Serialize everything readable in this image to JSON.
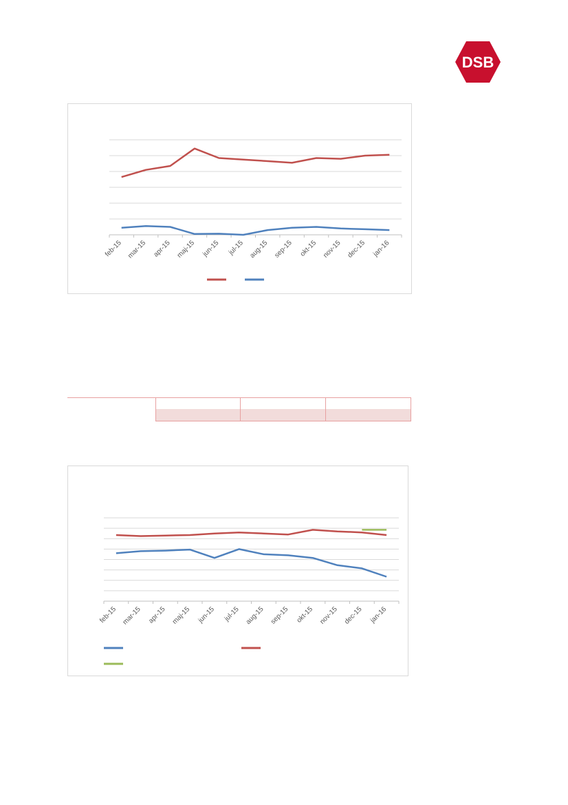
{
  "logo": {
    "text": "DSB",
    "color": "#c8102e"
  },
  "colors": {
    "red": "#c0504d",
    "blue": "#4f81bd",
    "green": "#9bbb59",
    "grid": "#d9d9d9",
    "table_border": "#e8a0a0",
    "table_fill": "#f2dcdb"
  },
  "table": {
    "label": "",
    "headers": [
      "",
      "",
      ""
    ],
    "values": [
      "",
      "",
      ""
    ]
  },
  "chart_data": [
    {
      "type": "line",
      "title": "",
      "categories": [
        "feb-15",
        "mar-15",
        "apr-15",
        "maj-15",
        "jun-15",
        "jul-15",
        "aug-15",
        "sep-15",
        "okt-15",
        "nov-15",
        "dec-15",
        "jan-16"
      ],
      "ylim": [
        0,
        6
      ],
      "grid": true,
      "legend": "bottom",
      "series": [
        {
          "color": "#c0504d",
          "values": [
            3.65,
            4.1,
            4.35,
            5.45,
            4.85,
            4.75,
            4.65,
            4.55,
            4.85,
            4.8,
            5.0,
            5.05
          ]
        },
        {
          "color": "#4f81bd",
          "values": [
            0.45,
            0.55,
            0.5,
            0.05,
            0.07,
            0.0,
            0.3,
            0.45,
            0.5,
            0.4,
            0.35,
            0.3
          ]
        }
      ]
    },
    {
      "type": "line",
      "title": "",
      "categories": [
        "feb-15",
        "mar-15",
        "apr-15",
        "maj-15",
        "jun-15",
        "jul-15",
        "aug-15",
        "sep-15",
        "okt-15",
        "nov-15",
        "dec-15",
        "jan-16"
      ],
      "ylim": [
        0,
        8
      ],
      "grid": true,
      "legend": "bottom",
      "series": [
        {
          "color": "#4f81bd",
          "values": [
            4.6,
            4.8,
            4.85,
            4.95,
            4.15,
            5.0,
            4.5,
            4.4,
            4.15,
            3.45,
            3.15,
            2.35
          ]
        },
        {
          "color": "#c0504d",
          "values": [
            6.35,
            6.25,
            6.3,
            6.35,
            6.5,
            6.6,
            6.5,
            6.4,
            6.85,
            6.7,
            6.6,
            6.35
          ]
        },
        {
          "color": "#9bbb59",
          "values": [
            null,
            null,
            null,
            null,
            null,
            null,
            null,
            null,
            null,
            null,
            6.85,
            6.85
          ]
        }
      ]
    }
  ]
}
